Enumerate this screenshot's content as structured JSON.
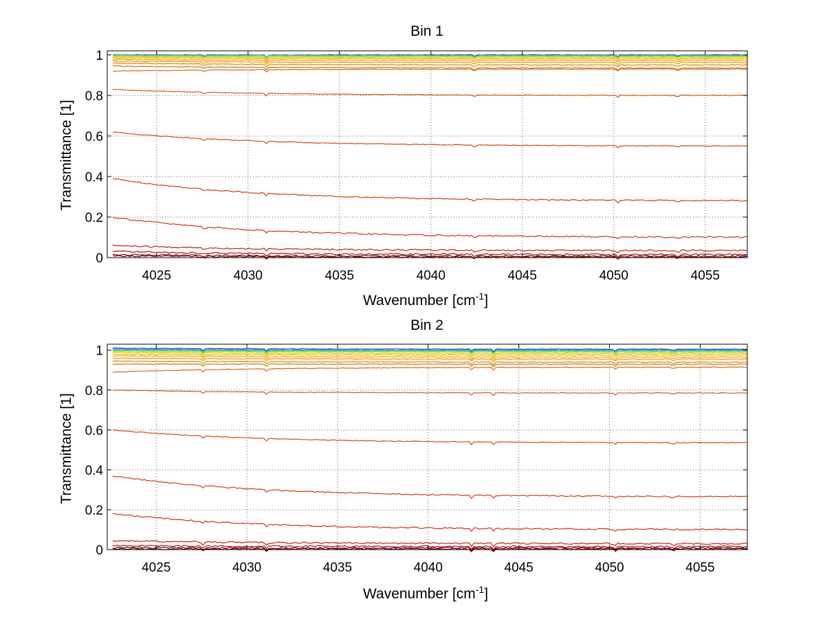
{
  "chart_data": [
    {
      "type": "line",
      "title": "Bin 1",
      "xlabel": "Wavenumber [cm",
      "xlabel_sup": "-1",
      "xlabel_end": "]",
      "ylabel": "Transmittance [1]",
      "xlim": [
        4022.3,
        4057.3
      ],
      "ylim": [
        0,
        1.02
      ],
      "xticks": [
        4025,
        4030,
        4035,
        4040,
        4045,
        4050,
        4055
      ],
      "yticks": [
        0,
        0.2,
        0.4,
        0.6,
        0.8,
        1
      ],
      "ytick_labels": [
        "0",
        "0.2",
        "0.4",
        "0.6",
        "0.8",
        "1"
      ],
      "grid": true,
      "x_start": 4022.6,
      "x_end": 4057.3,
      "spike_x": [
        4027.6,
        4031.0,
        4042.4,
        4050.2,
        4053.5
      ],
      "series": [
        {
          "values_start": 1.0,
          "values_end": 1.0,
          "color": "#1a3fd0"
        },
        {
          "values_start": 1.0,
          "values_end": 0.998,
          "color": "#2a8fe0"
        },
        {
          "values_start": 0.998,
          "values_end": 0.996,
          "color": "#2ec8c0"
        },
        {
          "values_start": 0.996,
          "values_end": 0.994,
          "color": "#7ad060"
        },
        {
          "values_start": 0.993,
          "values_end": 0.99,
          "color": "#c8e030"
        },
        {
          "values_start": 0.99,
          "values_end": 0.986,
          "color": "#f0d000"
        },
        {
          "values_start": 0.985,
          "values_end": 0.98,
          "color": "#f5b400"
        },
        {
          "values_start": 0.978,
          "values_end": 0.972,
          "color": "#f0a000"
        },
        {
          "values_start": 0.97,
          "values_end": 0.962,
          "color": "#e89000"
        },
        {
          "values_start": 0.96,
          "values_end": 0.95,
          "color": "#e08000"
        },
        {
          "values_start": 0.945,
          "values_end": 0.935,
          "color": "#d87000"
        },
        {
          "values_start": 0.92,
          "values_end": 0.93,
          "color": "#d86a10"
        },
        {
          "values_start": 0.83,
          "values_end": 0.8,
          "color": "#d05a10"
        },
        {
          "values_start": 0.62,
          "values_end": 0.55,
          "color": "#d04a10"
        },
        {
          "values_start": 0.39,
          "values_end": 0.28,
          "color": "#d03c10"
        },
        {
          "values_start": 0.2,
          "values_end": 0.1,
          "color": "#d02e10"
        },
        {
          "values_start": 0.06,
          "values_end": 0.035,
          "color": "#c02010"
        },
        {
          "values_start": 0.03,
          "values_end": 0.015,
          "color": "#a81010"
        },
        {
          "values_start": 0.015,
          "values_end": 0.007,
          "color": "#900808"
        },
        {
          "values_start": 0.008,
          "values_end": 0.003,
          "color": "#800000"
        }
      ]
    },
    {
      "type": "line",
      "title": "Bin 2",
      "xlabel": "Wavenumber [cm",
      "xlabel_sup": "-1",
      "xlabel_end": "]",
      "ylabel": "Transmittance [1]",
      "xlim": [
        4022.3,
        4057.6
      ],
      "ylim": [
        0,
        1.03
      ],
      "xticks": [
        4025,
        4030,
        4035,
        4040,
        4045,
        4050,
        4055
      ],
      "yticks": [
        0,
        0.2,
        0.4,
        0.6,
        0.8,
        1
      ],
      "ytick_labels": [
        "0",
        "0.2",
        "0.4",
        "0.6",
        "0.8",
        "1"
      ],
      "grid": true,
      "x_start": 4022.6,
      "x_end": 4057.6,
      "spike_x": [
        4027.6,
        4031.1,
        4042.4,
        4043.6,
        4050.3,
        4053.5
      ],
      "series": [
        {
          "values_start": 1.01,
          "values_end": 1.005,
          "color": "#1a3fd0"
        },
        {
          "values_start": 1.005,
          "values_end": 1.0,
          "color": "#2a8fe0"
        },
        {
          "values_start": 1.0,
          "values_end": 0.997,
          "color": "#2ec8c0"
        },
        {
          "values_start": 0.997,
          "values_end": 0.993,
          "color": "#7ad060"
        },
        {
          "values_start": 0.993,
          "values_end": 0.988,
          "color": "#c8e030"
        },
        {
          "values_start": 0.988,
          "values_end": 0.982,
          "color": "#f0d000"
        },
        {
          "values_start": 0.98,
          "values_end": 0.975,
          "color": "#f5b400"
        },
        {
          "values_start": 0.972,
          "values_end": 0.965,
          "color": "#f0a000"
        },
        {
          "values_start": 0.96,
          "values_end": 0.955,
          "color": "#e89000"
        },
        {
          "values_start": 0.945,
          "values_end": 0.94,
          "color": "#e08000"
        },
        {
          "values_start": 0.93,
          "values_end": 0.93,
          "color": "#d87000"
        },
        {
          "values_start": 0.89,
          "values_end": 0.915,
          "color": "#d86a10"
        },
        {
          "values_start": 0.8,
          "values_end": 0.785,
          "color": "#d05a10"
        },
        {
          "values_start": 0.6,
          "values_end": 0.535,
          "color": "#d04a10"
        },
        {
          "values_start": 0.37,
          "values_end": 0.265,
          "color": "#d03c10"
        },
        {
          "values_start": 0.18,
          "values_end": 0.1,
          "color": "#d02e10"
        },
        {
          "values_start": 0.045,
          "values_end": 0.03,
          "color": "#c02010"
        },
        {
          "values_start": 0.02,
          "values_end": 0.015,
          "color": "#a81010"
        },
        {
          "values_start": 0.01,
          "values_end": 0.008,
          "color": "#900808"
        },
        {
          "values_start": 0.004,
          "values_end": 0.003,
          "color": "#800000"
        }
      ]
    }
  ]
}
